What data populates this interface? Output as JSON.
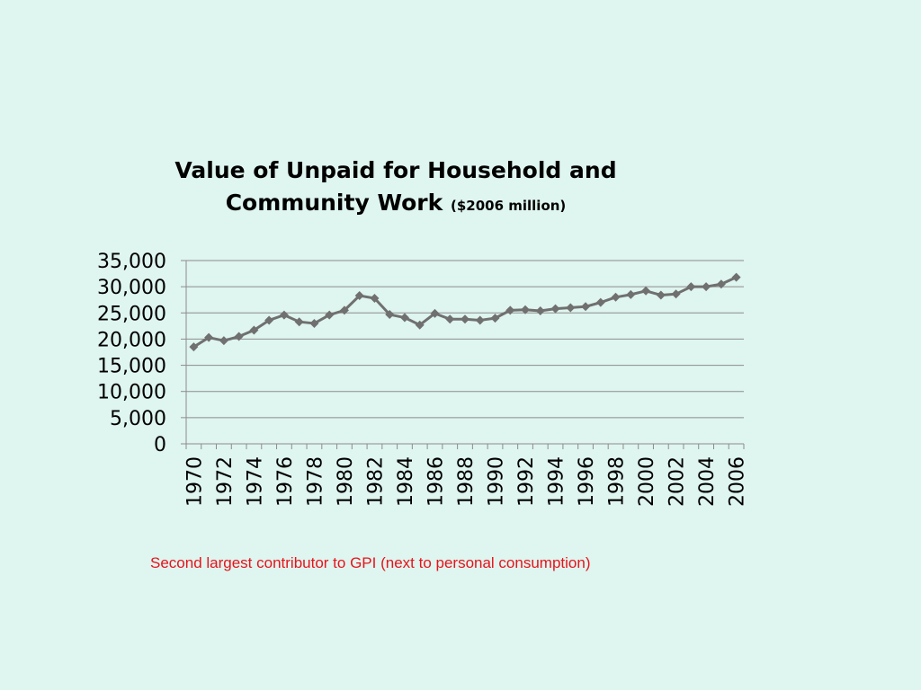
{
  "chart_data": {
    "type": "line",
    "title_line1": "Value of Unpaid for Household and",
    "title_line2": "Community Work",
    "title_unit": "($2006 million)",
    "xlabel": "",
    "ylabel": "",
    "ylim": [
      0,
      35000
    ],
    "yticks": [
      "0",
      "5,000",
      "10,000",
      "15,000",
      "20,000",
      "25,000",
      "30,000",
      "35,000"
    ],
    "x": [
      1970,
      1971,
      1972,
      1973,
      1974,
      1975,
      1976,
      1977,
      1978,
      1979,
      1980,
      1981,
      1982,
      1983,
      1984,
      1985,
      1986,
      1987,
      1988,
      1989,
      1990,
      1991,
      1992,
      1993,
      1994,
      1995,
      1996,
      1997,
      1998,
      1999,
      2000,
      2001,
      2002,
      2003,
      2004,
      2005,
      2006
    ],
    "xtick_labels": [
      "1970",
      "1972",
      "1974",
      "1976",
      "1978",
      "1980",
      "1982",
      "1984",
      "1986",
      "1988",
      "1990",
      "1992",
      "1994",
      "1996",
      "1998",
      "2000",
      "2002",
      "2004",
      "2006"
    ],
    "series": [
      {
        "values": [
          18500,
          20300,
          19700,
          20500,
          21700,
          23600,
          24600,
          23300,
          23000,
          24600,
          25500,
          28300,
          27800,
          24700,
          24100,
          22700,
          24900,
          23800,
          23800,
          23600,
          24000,
          25500,
          25600,
          25400,
          25800,
          26000,
          26200,
          27000,
          28000,
          28500,
          29200,
          28400,
          28600,
          30000,
          30000,
          30500,
          31800
        ],
        "color": "#707070"
      }
    ],
    "grid": true,
    "legend": "none"
  },
  "note": "Second largest contributor to GPI (next to personal consumption)",
  "colors": {
    "background": "#dff5ef",
    "line": "#707070",
    "note": "#e8131b"
  }
}
